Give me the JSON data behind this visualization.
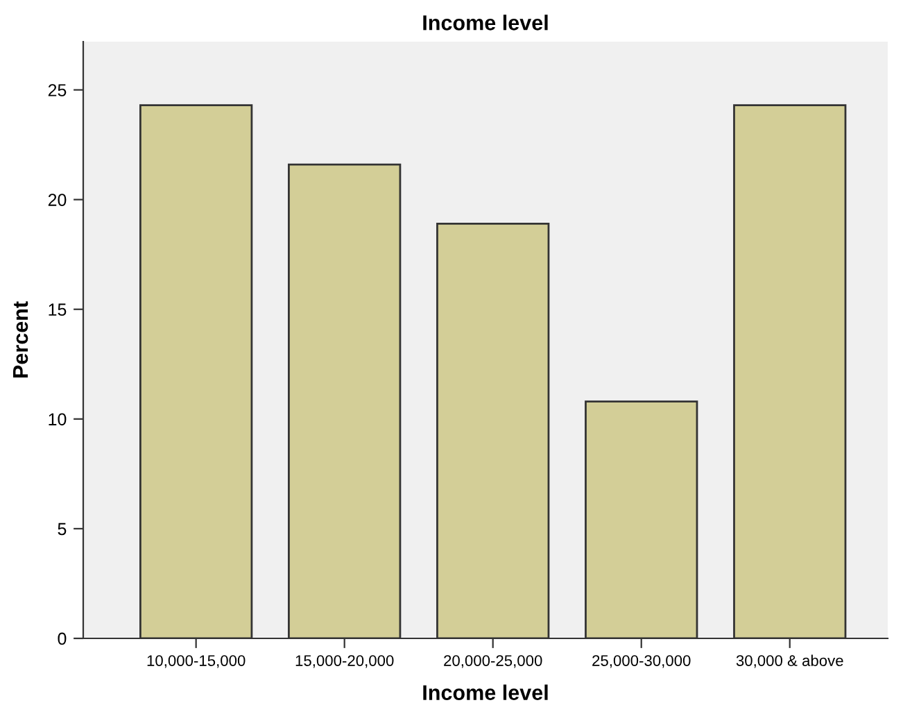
{
  "chart_data": {
    "type": "bar",
    "title": "Income level",
    "xlabel": "Income level",
    "ylabel": "Percent",
    "categories": [
      "10,000-15,000",
      "15,000-20,000",
      "20,000-25,000",
      "25,000-30,000",
      "30,000 & above"
    ],
    "values": [
      24.3,
      21.6,
      18.9,
      10.8,
      24.3
    ],
    "color": "#d3ce97",
    "ylim": [
      0,
      27.2
    ],
    "yticks": [
      0,
      5,
      10,
      15,
      20,
      25
    ],
    "grid": false,
    "legend": false
  }
}
